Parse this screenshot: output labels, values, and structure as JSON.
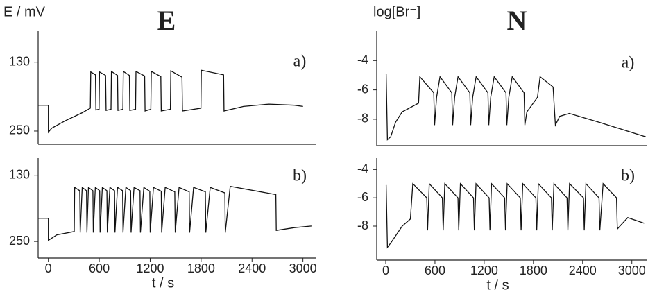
{
  "chart_data": [
    {
      "type": "line",
      "title": "E",
      "y_label": "E / mV",
      "panel": "a)",
      "xlim": [
        -120,
        3150
      ],
      "ylim": [
        273,
        76
      ],
      "yticks": [
        130,
        250
      ],
      "series": [
        {
          "color": "#111",
          "x": [
            -120,
            0,
            0,
            40,
            200,
            400,
            495,
            500,
            555,
            560,
            598,
            603,
            675,
            680,
            738,
            743,
            815,
            820,
            878,
            883,
            955,
            960,
            1028,
            1033,
            1135,
            1140,
            1208,
            1213,
            1325,
            1330,
            1438,
            1443,
            1575,
            1580,
            1798,
            1803,
            2065,
            2070,
            2300,
            2600,
            2900,
            3000
          ],
          "values": [
            205,
            205,
            252,
            245,
            232,
            218,
            210,
            147,
            152,
            213,
            212,
            147,
            153,
            214,
            212,
            146,
            153,
            214,
            212,
            146,
            153,
            214,
            212,
            146,
            154,
            215,
            212,
            146,
            155,
            215,
            212,
            145,
            156,
            215,
            210,
            144,
            152,
            215,
            207,
            203,
            205,
            207
          ]
        }
      ]
    },
    {
      "type": "line",
      "panel": "b)",
      "x_label": "t / s",
      "xlim": [
        -120,
        3150
      ],
      "ylim": [
        280,
        99
      ],
      "yticks": [
        130,
        250
      ],
      "xticks": [
        0,
        600,
        1200,
        1800,
        2400,
        3000
      ],
      "series": [
        {
          "color": "#111",
          "x": [
            -120,
            0,
            0,
            100,
            305,
            310,
            370,
            375,
            399,
            450,
            455,
            473,
            525,
            530,
            554,
            605,
            610,
            636,
            690,
            695,
            725,
            780,
            785,
            815,
            875,
            880,
            913,
            970,
            975,
            1010,
            1080,
            1085,
            1125,
            1195,
            1200,
            1239,
            1330,
            1335,
            1377,
            1490,
            1495,
            1540,
            1660,
            1665,
            1711,
            1850,
            1855,
            1907,
            2080,
            2085,
            2143,
            2681,
            2686,
            2900,
            3100
          ],
          "values": [
            208,
            208,
            248,
            238,
            232,
            152,
            158,
            234,
            152,
            158,
            234,
            152,
            158,
            234,
            152,
            158,
            234,
            152,
            158,
            234,
            152,
            158,
            234,
            152,
            158,
            234,
            152,
            158,
            234,
            152,
            158,
            234,
            152,
            159,
            234,
            152,
            159,
            234,
            152,
            160,
            234,
            152,
            160,
            234,
            152,
            160,
            234,
            152,
            162,
            234,
            150,
            165,
            230,
            225,
            222
          ]
        }
      ]
    },
    {
      "type": "line",
      "title": "N",
      "y_label": "log[Br⁻]",
      "panel": "a)",
      "xlim": [
        -110,
        3180
      ],
      "ylim": [
        -9.8,
        -2
      ],
      "yticks": [
        -4,
        -6,
        -8
      ],
      "series": [
        {
          "color": "#111",
          "x": [
            5,
            20,
            60,
            120,
            200,
            400,
            415,
            585,
            595,
            620,
            661,
            805,
            815,
            840,
            881,
            1025,
            1035,
            1060,
            1102,
            1246,
            1256,
            1280,
            1322,
            1466,
            1476,
            1500,
            1542,
            1686,
            1696,
            1720,
            1850,
            1881,
            2040,
            2068,
            2120,
            2237,
            2600,
            3000,
            3170
          ],
          "values": [
            -4.9,
            -9.4,
            -9.2,
            -8.2,
            -7.5,
            -6.9,
            -5.1,
            -6.2,
            -8.4,
            -6.5,
            -5.1,
            -6.2,
            -8.4,
            -6.5,
            -5.1,
            -6.2,
            -8.4,
            -6.5,
            -5.1,
            -6.2,
            -8.4,
            -6.5,
            -5.1,
            -6.2,
            -8.4,
            -6.5,
            -5.1,
            -6.2,
            -8.4,
            -7.5,
            -6.5,
            -5.1,
            -5.8,
            -8.4,
            -7.8,
            -7.6,
            -8.2,
            -8.9,
            -9.2
          ]
        }
      ]
    },
    {
      "type": "line",
      "panel": "b)",
      "x_label": "t / s",
      "xlim": [
        -110,
        3180
      ],
      "ylim": [
        -10.4,
        -3.2
      ],
      "yticks": [
        -4,
        -6,
        -8
      ],
      "xticks": [
        0,
        600,
        1200,
        1800,
        2400,
        3000
      ],
      "series": [
        {
          "color": "#111",
          "x": [
            5,
            20,
            60,
            200,
            300,
            330,
            500,
            510,
            530,
            690,
            700,
            720,
            880,
            890,
            910,
            1070,
            1080,
            1100,
            1260,
            1270,
            1290,
            1450,
            1460,
            1480,
            1640,
            1650,
            1670,
            1830,
            1840,
            1860,
            2020,
            2030,
            2050,
            2210,
            2220,
            2240,
            2410,
            2420,
            2440,
            2600,
            2610,
            2650,
            2813,
            2823,
            2950,
            3150
          ],
          "values": [
            -5.1,
            -9.5,
            -9.2,
            -8.0,
            -7.5,
            -5.0,
            -6.0,
            -8.3,
            -5.0,
            -6.0,
            -8.3,
            -5.0,
            -6.0,
            -8.3,
            -5.0,
            -6.0,
            -8.3,
            -5.0,
            -6.0,
            -8.3,
            -5.0,
            -6.0,
            -8.3,
            -5.0,
            -6.0,
            -8.3,
            -5.0,
            -6.0,
            -8.3,
            -5.0,
            -6.0,
            -8.3,
            -5.0,
            -6.0,
            -8.3,
            -5.0,
            -6.0,
            -8.3,
            -5.0,
            -6.0,
            -8.3,
            -5.0,
            -6.0,
            -8.2,
            -7.4,
            -7.8
          ]
        }
      ]
    }
  ]
}
